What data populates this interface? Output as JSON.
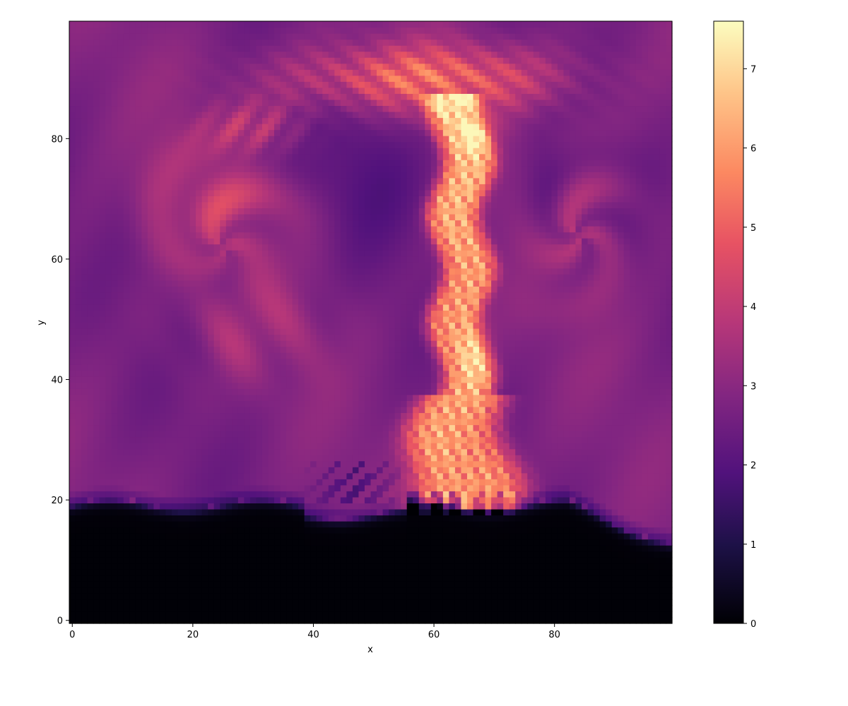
{
  "chart_data": {
    "type": "heatmap",
    "title": "",
    "xlabel": "x",
    "ylabel": "y",
    "xlim": [
      -0.5,
      99.5
    ],
    "ylim": [
      -0.5,
      99.5
    ],
    "x_ticks": [
      0,
      20,
      40,
      60,
      80
    ],
    "x_tick_labels": [
      "0",
      "20",
      "40",
      "60",
      "80"
    ],
    "y_ticks": [
      0,
      20,
      40,
      60,
      80
    ],
    "y_tick_labels": [
      "0",
      "20",
      "40",
      "60",
      "80"
    ],
    "grid": false,
    "grid_size": [
      100,
      100
    ],
    "colormap": "magma",
    "colorbar": {
      "vmin": 0,
      "vmax": 7.6,
      "ticks": [
        0,
        1,
        2,
        3,
        4,
        5,
        6,
        7
      ],
      "tick_labels": [
        "0",
        "1",
        "2",
        "3",
        "4",
        "5",
        "6",
        "7"
      ]
    },
    "field_description": {
      "background_value": 2.8,
      "lower_layer": {
        "y_below": 19,
        "value": 0.05
      },
      "plume_stem": {
        "x_center": 65,
        "width": 8,
        "y_range": [
          20,
          82
        ],
        "value_range": [
          5.5,
          7.3
        ]
      },
      "plume_cap": {
        "x_center": 62,
        "y_center": 87,
        "width": 50,
        "height": 14,
        "value_range": [
          5.0,
          6.5
        ]
      },
      "left_swirl": {
        "x_center": 25,
        "y_center": 62,
        "value_range": [
          3.2,
          5.2
        ]
      },
      "right_swirl": {
        "x_center": 84,
        "y_center": 64,
        "value_range": [
          3.2,
          4.4
        ]
      }
    }
  }
}
